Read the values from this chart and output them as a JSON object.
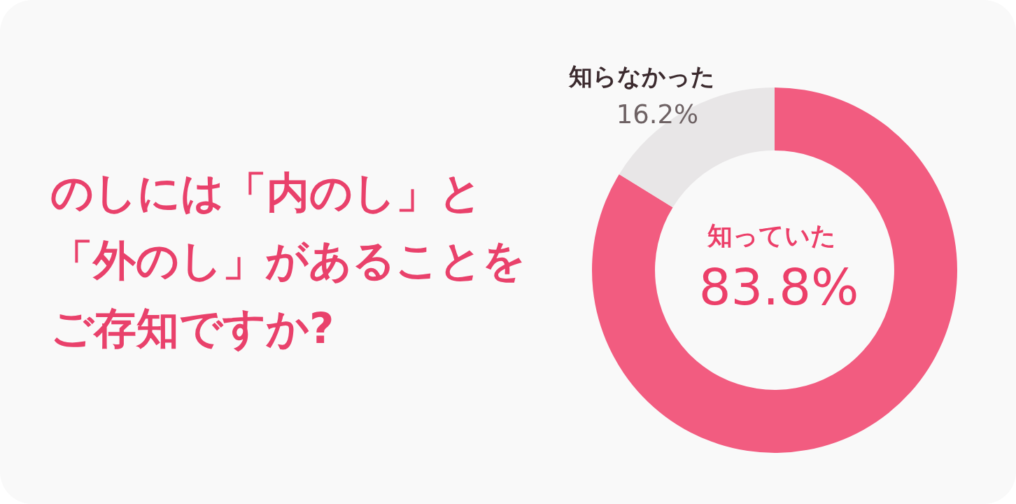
{
  "chart_data": {
    "type": "donut",
    "title": "のしには「内のし」と「外のし」があることをご存知ですか?",
    "categories": [
      "知っていた",
      "知らなかった"
    ],
    "values": [
      83.8,
      16.2
    ],
    "colors": [
      "#f25c80",
      "#e8e6e7"
    ],
    "value_labels": [
      "83.8%",
      "16.2%"
    ]
  }
}
